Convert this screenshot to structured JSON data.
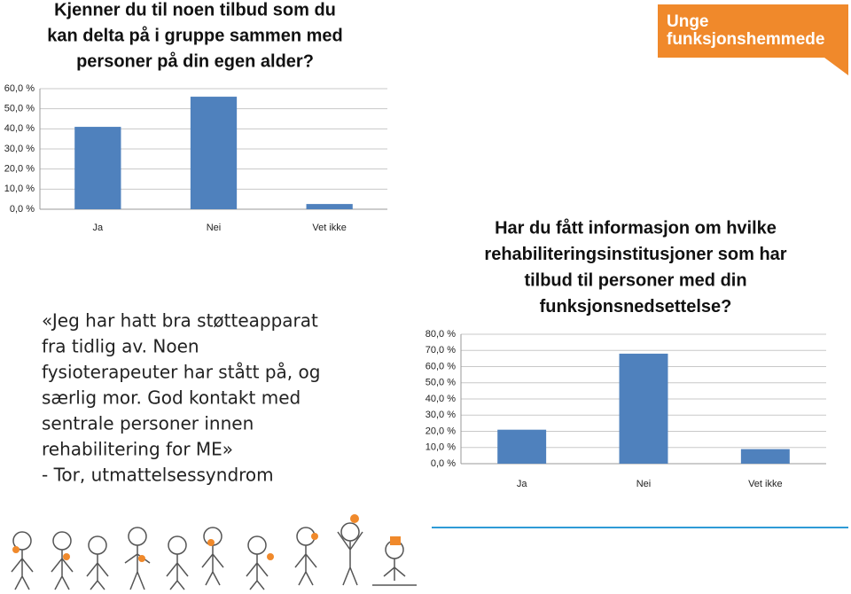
{
  "chart_data": [
    {
      "type": "bar",
      "title": [
        "Kjenner du til noen tilbud som du",
        "kan delta på i gruppe sammen med",
        "personer på din egen alder?"
      ],
      "categories": [
        "Ja",
        "Nei",
        "Vet ikke"
      ],
      "values": [
        41,
        56,
        2.6
      ],
      "color": "#4f81bd",
      "ylim": [
        0,
        60
      ],
      "yticks": [
        {
          "value": 0,
          "label": "0,0 %"
        },
        {
          "value": 10,
          "label": "10,0 %"
        },
        {
          "value": 20,
          "label": "20,0 %"
        },
        {
          "value": 30,
          "label": "30,0 %"
        },
        {
          "value": 40,
          "label": "40,0 %"
        },
        {
          "value": 50,
          "label": "50,0 %"
        },
        {
          "value": 60,
          "label": "60,0 %"
        }
      ],
      "grid": true
    },
    {
      "type": "bar",
      "title": [
        "Har du fått informasjon om hvilke",
        "rehabiliteringsinstitusjoner som har",
        "tilbud til personer med din",
        "funksjonsnedsettelse?"
      ],
      "categories": [
        "Ja",
        "Nei",
        "Vet ikke"
      ],
      "values": [
        21,
        68,
        9
      ],
      "color": "#4f81bd",
      "ylim": [
        0,
        80
      ],
      "yticks": [
        {
          "value": 0,
          "label": "0,0 %"
        },
        {
          "value": 10,
          "label": "10,0 %"
        },
        {
          "value": 20,
          "label": "20,0 %"
        },
        {
          "value": 30,
          "label": "30,0 %"
        },
        {
          "value": 40,
          "label": "40,0 %"
        },
        {
          "value": 50,
          "label": "50,0 %"
        },
        {
          "value": 60,
          "label": "60,0 %"
        },
        {
          "value": 70,
          "label": "70,0 %"
        },
        {
          "value": 80,
          "label": "80,0 %"
        }
      ],
      "grid": true
    }
  ],
  "quote": {
    "lines": [
      "«Jeg har hatt bra støtteapparat",
      "fra tidlig av. Noen",
      "fysioterapeuter har stått på, og",
      "særlig mor. God kontakt med",
      "sentrale personer innen",
      "rehabilitering for ME»",
      "- Tor, utmattelsessyndrom"
    ]
  },
  "logo": {
    "lines": [
      "Unge",
      "funksjonshemmede"
    ]
  }
}
